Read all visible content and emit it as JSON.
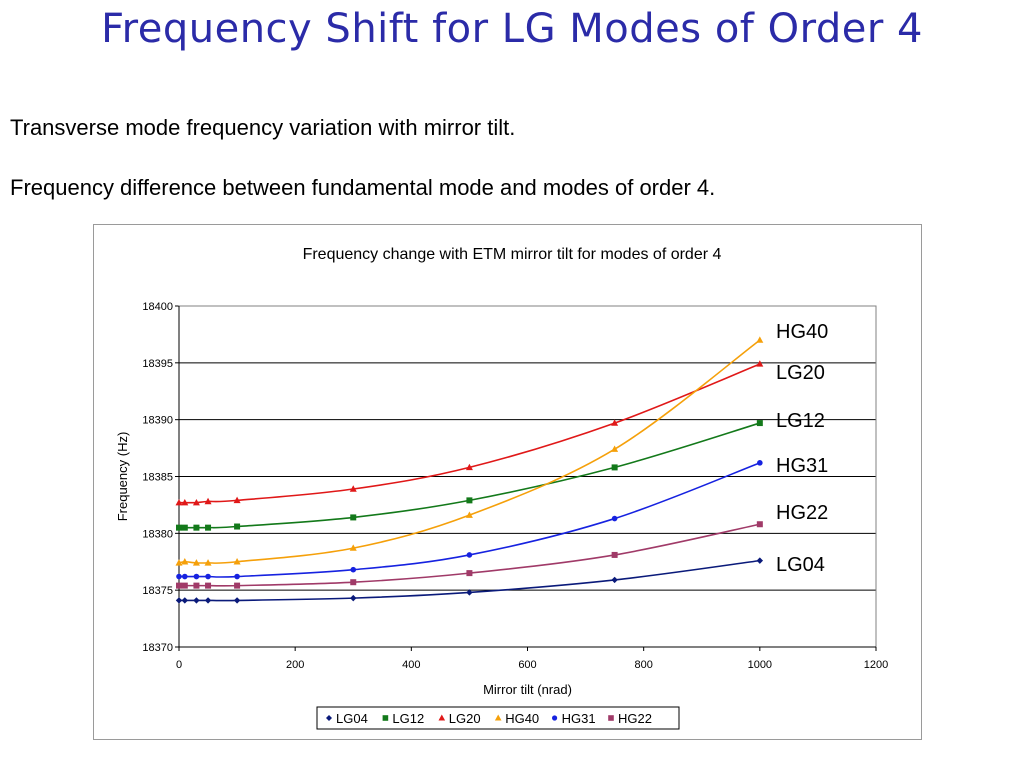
{
  "slide": {
    "title": "Frequency Shift for LG Modes of Order 4",
    "bullets": [
      "Transverse mode frequency variation with mirror tilt.",
      "Frequency difference between fundamental mode and modes of order 4."
    ]
  },
  "side_labels": [
    "HG40",
    "LG20",
    "LG12",
    "HG31",
    "HG22",
    "LG04"
  ],
  "chart_data": {
    "type": "line",
    "title": "Frequency change with ETM mirror tilt for modes of order 4",
    "xlabel": "Mirror tilt (nrad)",
    "ylabel": "Frequency (Hz)",
    "xlim": [
      0,
      1200
    ],
    "ylim": [
      18370,
      18400
    ],
    "xticks": [
      0,
      200,
      400,
      600,
      800,
      1000,
      1200
    ],
    "yticks": [
      18370,
      18375,
      18380,
      18385,
      18390,
      18395,
      18400
    ],
    "grid": "horizontal",
    "legend": "bottom",
    "x": [
      0,
      10,
      30,
      50,
      100,
      300,
      500,
      750,
      1000
    ],
    "series": [
      {
        "name": "LG04",
        "marker": "diamond",
        "color": "#0a1a7a",
        "values": [
          18374.1,
          18374.1,
          18374.1,
          18374.1,
          18374.1,
          18374.3,
          18374.8,
          18375.9,
          18377.6
        ]
      },
      {
        "name": "LG12",
        "marker": "square",
        "color": "#13791a",
        "values": [
          18380.5,
          18380.5,
          18380.5,
          18380.5,
          18380.6,
          18381.4,
          18382.9,
          18385.8,
          18389.7
        ]
      },
      {
        "name": "LG20",
        "marker": "triangle",
        "color": "#e01818",
        "values": [
          18382.7,
          18382.7,
          18382.7,
          18382.8,
          18382.9,
          18383.9,
          18385.8,
          18389.7,
          18394.9
        ]
      },
      {
        "name": "HG40",
        "marker": "triangle",
        "color": "#f5a00a",
        "values": [
          18377.4,
          18377.5,
          18377.4,
          18377.4,
          18377.5,
          18378.7,
          18381.6,
          18387.4,
          18397.0
        ]
      },
      {
        "name": "HG31",
        "marker": "circle",
        "color": "#1622e0",
        "values": [
          18376.2,
          18376.2,
          18376.2,
          18376.2,
          18376.2,
          18376.8,
          18378.1,
          18381.3,
          18386.2
        ]
      },
      {
        "name": "HG22",
        "marker": "square",
        "color": "#a03a68",
        "values": [
          18375.4,
          18375.4,
          18375.4,
          18375.4,
          18375.4,
          18375.7,
          18376.5,
          18378.1,
          18380.8
        ]
      }
    ]
  }
}
